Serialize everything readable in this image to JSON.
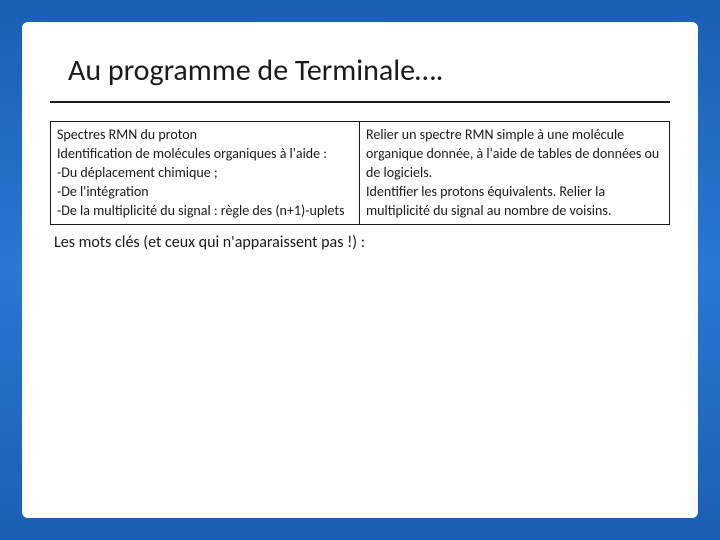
{
  "title": "Au programme de Terminale….",
  "table": {
    "left": "Spectres RMN du proton\nIdentification de molécules organiques à l'aide :\n-Du déplacement chimique ;\n-De l'intégration\n-De la multiplicité du signal : règle des (n+1)-uplets",
    "right": "Relier un spectre RMN simple à une molécule organique donnée, à l'aide de tables de données ou de logiciels.\nIdentifier les protons équivalents. Relier la multiplicité du signal au nombre de voisins."
  },
  "subhead": "Les mots clés (et ceux qui n'apparaissent pas !)  :",
  "colors": {
    "frame_blue": "#1a5fb4",
    "text": "#1a1a1a",
    "bg": "#ffffff"
  }
}
